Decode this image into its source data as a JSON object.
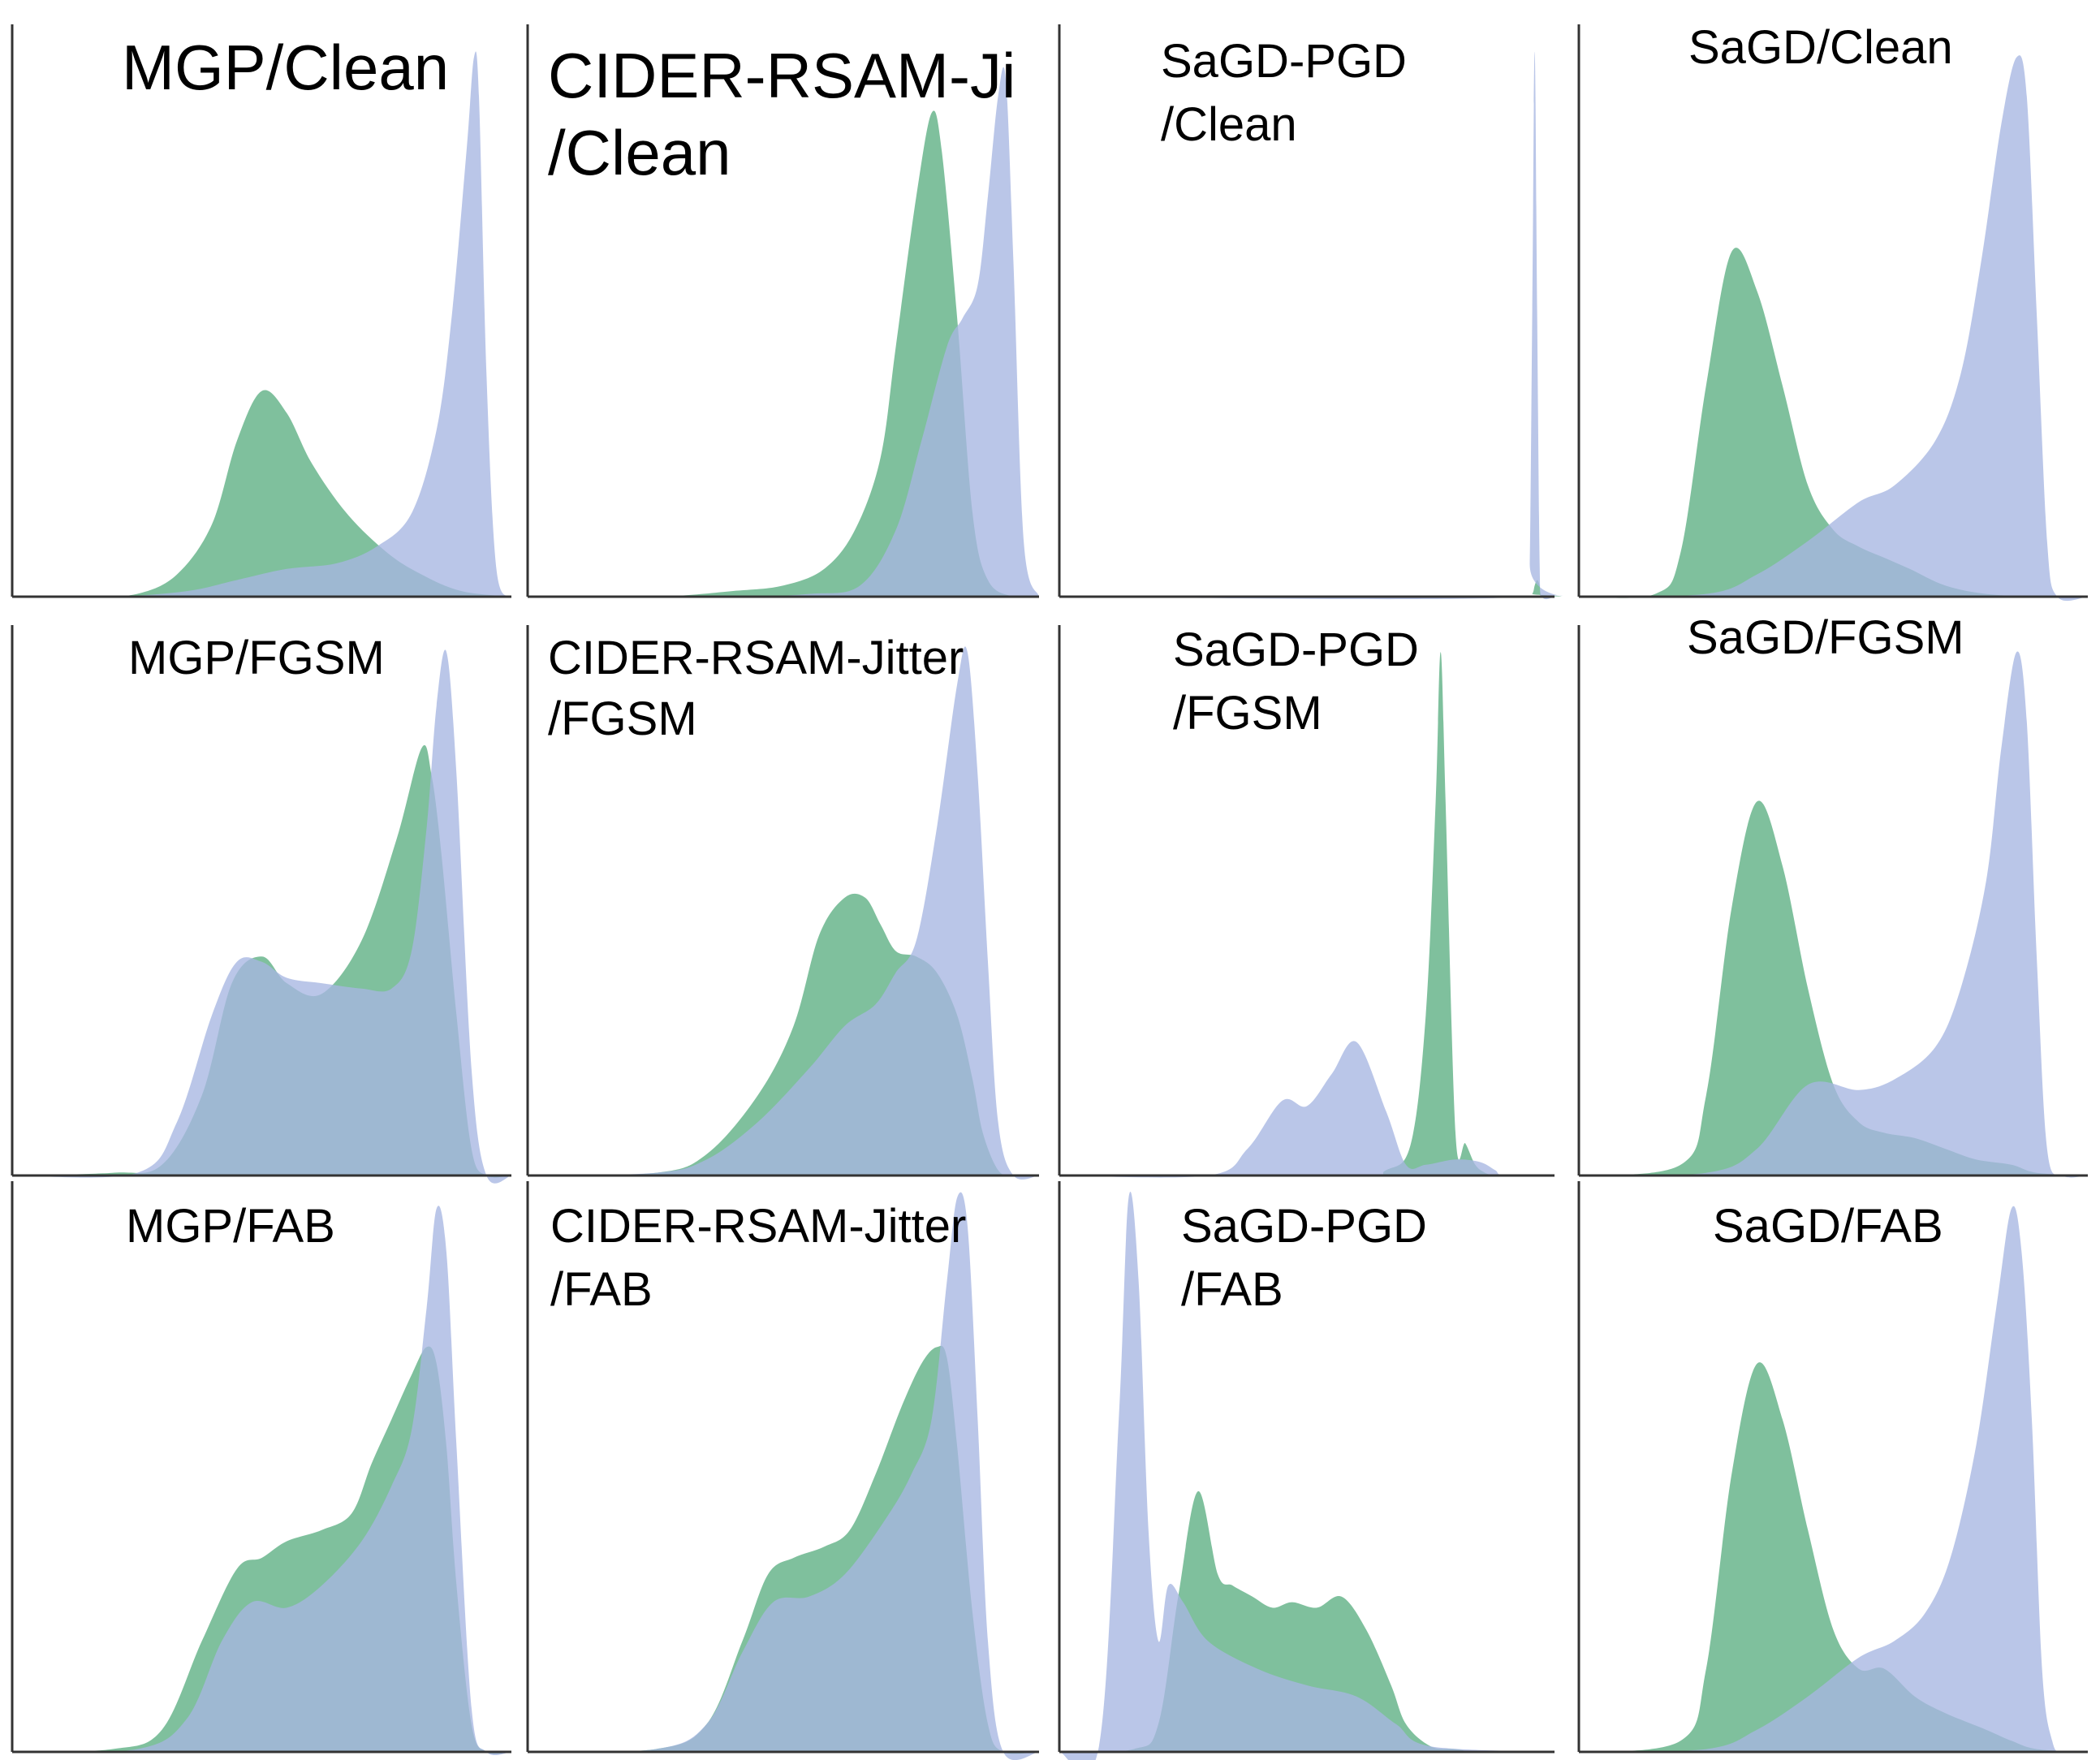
{
  "figure": {
    "series_colors": {
      "green": "#5bae82",
      "blue": "#a7b6e2"
    },
    "fill_opacity": 0.78
  },
  "chart_data": [
    {
      "type": "area",
      "name": "MGP/Clean",
      "title_lines": [
        "MGP/Clean"
      ],
      "xlim": [
        0,
        1
      ],
      "ylim": [
        0,
        1
      ],
      "grid": false,
      "series": [
        {
          "name": "green",
          "x": [
            0.0,
            0.15,
            0.25,
            0.33,
            0.4,
            0.45,
            0.5,
            0.55,
            0.6,
            0.67,
            0.75,
            0.82,
            0.9,
            1.0
          ],
          "values": [
            0.0,
            0.0,
            0.005,
            0.04,
            0.13,
            0.28,
            0.37,
            0.33,
            0.24,
            0.15,
            0.08,
            0.04,
            0.01,
            0.0
          ]
        },
        {
          "name": "blue",
          "x": [
            0.0,
            0.2,
            0.35,
            0.45,
            0.55,
            0.65,
            0.73,
            0.8,
            0.85,
            0.88,
            0.91,
            0.925,
            0.935,
            0.95,
            0.97,
            1.0
          ],
          "values": [
            0.0,
            0.0,
            0.01,
            0.03,
            0.05,
            0.06,
            0.09,
            0.15,
            0.3,
            0.5,
            0.8,
            0.97,
            0.9,
            0.4,
            0.05,
            0.0
          ]
        }
      ]
    },
    {
      "type": "area",
      "name": "CIDER-RSAM-Ji/Clean",
      "title_lines": [
        "CIDER-RSAM-Ji",
        "/Clean"
      ],
      "xlim": [
        0,
        1
      ],
      "ylim": [
        0,
        1
      ],
      "grid": false,
      "series": [
        {
          "name": "green",
          "x": [
            0.0,
            0.25,
            0.4,
            0.5,
            0.58,
            0.64,
            0.69,
            0.72,
            0.76,
            0.79,
            0.81,
            0.84,
            0.87,
            0.9,
            0.95,
            1.0
          ],
          "values": [
            0.0,
            0.0,
            0.01,
            0.02,
            0.05,
            0.12,
            0.25,
            0.45,
            0.72,
            0.87,
            0.8,
            0.5,
            0.15,
            0.03,
            0.0,
            0.0
          ]
        },
        {
          "name": "blue",
          "x": [
            0.0,
            0.4,
            0.55,
            0.65,
            0.72,
            0.77,
            0.82,
            0.85,
            0.88,
            0.9,
            0.92,
            0.935,
            0.95,
            0.97,
            1.0
          ],
          "values": [
            0.0,
            0.0,
            0.005,
            0.02,
            0.12,
            0.28,
            0.45,
            0.5,
            0.56,
            0.72,
            0.9,
            0.93,
            0.6,
            0.1,
            0.0
          ]
        }
      ]
    },
    {
      "type": "area",
      "name": "SaGD-PGD/Clean",
      "title_lines": [
        "SaGD-PGD",
        "/Clean"
      ],
      "xlim": [
        0,
        1
      ],
      "ylim": [
        0,
        1
      ],
      "grid": false,
      "series": [
        {
          "name": "green",
          "x": [
            0.0,
            0.94,
            0.955,
            0.96,
            0.965,
            0.97,
            0.975,
            1.0
          ],
          "values": [
            0.0,
            0.0,
            0.005,
            0.02,
            0.03,
            0.02,
            0.0,
            0.0
          ]
        },
        {
          "name": "blue",
          "x": [
            0.0,
            0.945,
            0.95,
            0.955,
            0.96,
            0.965,
            0.97,
            0.975,
            1.0
          ],
          "values": [
            0.0,
            0.0,
            0.06,
            0.5,
            0.98,
            0.5,
            0.06,
            0.0,
            0.0
          ]
        }
      ]
    },
    {
      "type": "area",
      "name": "SaGD/Clean",
      "title_lines": [
        "SaGD/Clean"
      ],
      "xlim": [
        0,
        1
      ],
      "ylim": [
        0,
        1
      ],
      "grid": false,
      "series": [
        {
          "name": "green",
          "x": [
            0.0,
            0.15,
            0.2,
            0.25,
            0.3,
            0.35,
            0.4,
            0.45,
            0.5,
            0.55,
            0.6,
            0.65,
            0.72,
            0.8,
            0.9,
            1.0
          ],
          "values": [
            0.0,
            0.005,
            0.08,
            0.38,
            0.62,
            0.55,
            0.38,
            0.2,
            0.12,
            0.09,
            0.07,
            0.05,
            0.02,
            0.005,
            0.0,
            0.0
          ]
        },
        {
          "name": "blue",
          "x": [
            0.0,
            0.25,
            0.35,
            0.45,
            0.55,
            0.62,
            0.7,
            0.75,
            0.79,
            0.83,
            0.86,
            0.88,
            0.9,
            0.92,
            0.94,
            1.0
          ],
          "values": [
            0.0,
            0.005,
            0.04,
            0.1,
            0.17,
            0.2,
            0.28,
            0.4,
            0.6,
            0.85,
            0.97,
            0.9,
            0.5,
            0.1,
            0.0,
            0.0
          ]
        }
      ]
    },
    {
      "type": "area",
      "name": "MGP/FGSM",
      "title_lines": [
        "MGP/FGSM"
      ],
      "xlim": [
        0,
        1
      ],
      "ylim": [
        0,
        1
      ],
      "grid": false,
      "series": [
        {
          "name": "green",
          "x": [
            0.0,
            0.2,
            0.3,
            0.38,
            0.44,
            0.5,
            0.55,
            0.62,
            0.7,
            0.77,
            0.82,
            0.84,
            0.86,
            0.89,
            0.92,
            0.95,
            1.0
          ],
          "values": [
            0.0,
            0.005,
            0.02,
            0.15,
            0.36,
            0.41,
            0.36,
            0.34,
            0.44,
            0.63,
            0.8,
            0.75,
            0.6,
            0.3,
            0.05,
            0.0,
            0.0
          ]
        },
        {
          "name": "blue",
          "x": [
            0.0,
            0.25,
            0.33,
            0.4,
            0.45,
            0.5,
            0.55,
            0.62,
            0.7,
            0.76,
            0.8,
            0.83,
            0.85,
            0.87,
            0.89,
            0.92,
            0.95,
            1.0
          ],
          "values": [
            0.0,
            0.005,
            0.1,
            0.3,
            0.4,
            0.4,
            0.37,
            0.36,
            0.35,
            0.35,
            0.42,
            0.65,
            0.88,
            0.98,
            0.75,
            0.2,
            0.0,
            0.0
          ]
        }
      ]
    },
    {
      "type": "area",
      "name": "CIDER-RSAM-Jitter/FGSM",
      "title_lines": [
        "CIDER-RSAM-Jitter",
        "/FGSM"
      ],
      "xlim": [
        0,
        1
      ],
      "ylim": [
        0,
        1
      ],
      "grid": false,
      "series": [
        {
          "name": "green",
          "x": [
            0.0,
            0.25,
            0.35,
            0.45,
            0.52,
            0.57,
            0.62,
            0.66,
            0.69,
            0.72,
            0.76,
            0.8,
            0.84,
            0.87,
            0.89,
            0.92,
            0.95,
            1.0
          ],
          "values": [
            0.0,
            0.005,
            0.04,
            0.15,
            0.28,
            0.45,
            0.52,
            0.52,
            0.47,
            0.42,
            0.41,
            0.38,
            0.3,
            0.18,
            0.08,
            0.01,
            0.0,
            0.0
          ]
        },
        {
          "name": "blue",
          "x": [
            0.0,
            0.25,
            0.35,
            0.45,
            0.55,
            0.62,
            0.68,
            0.72,
            0.76,
            0.8,
            0.84,
            0.86,
            0.88,
            0.9,
            0.92,
            0.95,
            1.0
          ],
          "values": [
            0.0,
            0.005,
            0.03,
            0.1,
            0.2,
            0.28,
            0.32,
            0.38,
            0.44,
            0.65,
            0.92,
            0.98,
            0.75,
            0.4,
            0.1,
            0.0,
            0.0
          ]
        }
      ]
    },
    {
      "type": "area",
      "name": "SaGD-PGD/FGSM",
      "title_lines": [
        "SaGD-PGD",
        "/FGSM"
      ],
      "xlim": [
        0,
        1
      ],
      "ylim": [
        0,
        1
      ],
      "grid": false,
      "series": [
        {
          "name": "green",
          "x": [
            0.0,
            0.58,
            0.66,
            0.71,
            0.74,
            0.76,
            0.77,
            0.78,
            0.8,
            0.82,
            0.84,
            0.86,
            0.88,
            0.9,
            1.0
          ],
          "values": [
            0.0,
            0.0,
            0.01,
            0.06,
            0.3,
            0.7,
            0.98,
            0.7,
            0.08,
            0.06,
            0.02,
            0.005,
            0.0,
            0.0,
            0.0
          ]
        },
        {
          "name": "blue",
          "x": [
            0.0,
            0.3,
            0.38,
            0.45,
            0.5,
            0.55,
            0.6,
            0.66,
            0.7,
            0.74,
            0.8,
            0.85,
            0.88,
            0.9,
            1.0
          ],
          "values": [
            0.0,
            0.0,
            0.05,
            0.14,
            0.13,
            0.19,
            0.25,
            0.12,
            0.02,
            0.02,
            0.03,
            0.025,
            0.01,
            0.0,
            0.0
          ]
        }
      ]
    },
    {
      "type": "area",
      "name": "SaGD/FGSM",
      "title_lines": [
        "SaGD/FGSM"
      ],
      "xlim": [
        0,
        1
      ],
      "ylim": [
        0,
        1
      ],
      "grid": false,
      "series": [
        {
          "name": "green",
          "x": [
            0.0,
            0.2,
            0.25,
            0.3,
            0.35,
            0.4,
            0.45,
            0.5,
            0.55,
            0.6,
            0.66,
            0.72,
            0.78,
            0.85,
            0.9,
            1.0
          ],
          "values": [
            0.0,
            0.02,
            0.15,
            0.5,
            0.7,
            0.58,
            0.35,
            0.17,
            0.1,
            0.08,
            0.07,
            0.05,
            0.03,
            0.02,
            0.005,
            0.0
          ]
        },
        {
          "name": "blue",
          "x": [
            0.0,
            0.25,
            0.35,
            0.45,
            0.55,
            0.62,
            0.7,
            0.75,
            0.8,
            0.83,
            0.86,
            0.88,
            0.9,
            0.92,
            0.95,
            1.0
          ],
          "values": [
            0.0,
            0.005,
            0.05,
            0.17,
            0.16,
            0.18,
            0.24,
            0.35,
            0.55,
            0.8,
            0.98,
            0.85,
            0.4,
            0.05,
            0.0,
            0.0
          ]
        }
      ]
    },
    {
      "type": "area",
      "name": "MGP/FAB",
      "title_lines": [
        "MGP/FAB"
      ],
      "xlim": [
        0,
        1
      ],
      "ylim": [
        0,
        1
      ],
      "grid": false,
      "series": [
        {
          "name": "green",
          "x": [
            0.0,
            0.2,
            0.3,
            0.38,
            0.45,
            0.5,
            0.55,
            0.62,
            0.68,
            0.72,
            0.76,
            0.8,
            0.83,
            0.85,
            0.87,
            0.89,
            0.92,
            0.95,
            1.0
          ],
          "values": [
            0.0,
            0.005,
            0.04,
            0.2,
            0.33,
            0.35,
            0.38,
            0.4,
            0.43,
            0.52,
            0.6,
            0.68,
            0.73,
            0.7,
            0.55,
            0.3,
            0.05,
            0.0,
            0.0
          ]
        },
        {
          "name": "blue",
          "x": [
            0.0,
            0.25,
            0.35,
            0.42,
            0.48,
            0.55,
            0.62,
            0.7,
            0.76,
            0.8,
            0.83,
            0.85,
            0.87,
            0.89,
            0.92,
            0.95,
            1.0
          ],
          "values": [
            0.0,
            0.005,
            0.06,
            0.2,
            0.27,
            0.26,
            0.3,
            0.38,
            0.48,
            0.58,
            0.8,
            0.98,
            0.9,
            0.55,
            0.08,
            0.0,
            0.0
          ]
        }
      ]
    },
    {
      "type": "area",
      "name": "CIDER-RSAM-Jitter/FAB",
      "title_lines": [
        "CIDER-RSAM-Jitter",
        "/FAB"
      ],
      "xlim": [
        0,
        1
      ],
      "ylim": [
        0,
        1
      ],
      "grid": false,
      "series": [
        {
          "name": "green",
          "x": [
            0.0,
            0.25,
            0.35,
            0.42,
            0.47,
            0.52,
            0.58,
            0.63,
            0.68,
            0.73,
            0.77,
            0.8,
            0.82,
            0.84,
            0.87,
            0.9,
            0.93,
            1.0
          ],
          "values": [
            0.0,
            0.005,
            0.05,
            0.2,
            0.32,
            0.35,
            0.37,
            0.4,
            0.5,
            0.62,
            0.7,
            0.73,
            0.71,
            0.55,
            0.25,
            0.05,
            0.0,
            0.0
          ]
        },
        {
          "name": "blue",
          "x": [
            0.0,
            0.25,
            0.35,
            0.42,
            0.48,
            0.55,
            0.62,
            0.7,
            0.75,
            0.79,
            0.82,
            0.84,
            0.86,
            0.88,
            0.9,
            0.93,
            1.0
          ],
          "values": [
            0.0,
            0.005,
            0.05,
            0.18,
            0.27,
            0.28,
            0.32,
            0.42,
            0.5,
            0.6,
            0.85,
            1.0,
            0.95,
            0.6,
            0.2,
            0.0,
            0.0
          ]
        }
      ]
    },
    {
      "type": "area",
      "name": "SaGD-PGD/FAB",
      "title_lines": [
        "SaGD-PGD",
        "/FAB"
      ],
      "xlim": [
        0,
        1
      ],
      "ylim": [
        0,
        1
      ],
      "grid": false,
      "series": [
        {
          "name": "green",
          "x": [
            0.0,
            0.15,
            0.2,
            0.24,
            0.28,
            0.32,
            0.35,
            0.39,
            0.43,
            0.47,
            0.52,
            0.57,
            0.62,
            0.67,
            0.7,
            0.75,
            0.8,
            0.85,
            1.0
          ],
          "values": [
            0.0,
            0.005,
            0.05,
            0.28,
            0.47,
            0.32,
            0.3,
            0.28,
            0.26,
            0.27,
            0.26,
            0.28,
            0.22,
            0.12,
            0.05,
            0.01,
            0.005,
            0.0,
            0.0
          ]
        },
        {
          "name": "blue",
          "x": [
            0.0,
            0.08,
            0.12,
            0.14,
            0.16,
            0.18,
            0.2,
            0.22,
            0.25,
            0.3,
            0.4,
            0.5,
            0.6,
            0.68,
            0.75,
            1.0
          ],
          "values": [
            0.0,
            0.01,
            0.6,
            1.0,
            0.85,
            0.4,
            0.2,
            0.3,
            0.27,
            0.2,
            0.15,
            0.12,
            0.1,
            0.05,
            0.01,
            0.0
          ]
        }
      ]
    },
    {
      "type": "area",
      "name": "SaGD/FAB",
      "title_lines": [
        "SaGD/FAB"
      ],
      "xlim": [
        0,
        1
      ],
      "ylim": [
        0,
        1
      ],
      "grid": false,
      "series": [
        {
          "name": "green",
          "x": [
            0.0,
            0.2,
            0.25,
            0.3,
            0.35,
            0.4,
            0.45,
            0.5,
            0.55,
            0.6,
            0.66,
            0.72,
            0.8,
            0.85,
            0.9,
            1.0
          ],
          "values": [
            0.0,
            0.02,
            0.15,
            0.5,
            0.7,
            0.6,
            0.4,
            0.22,
            0.15,
            0.15,
            0.1,
            0.07,
            0.04,
            0.02,
            0.005,
            0.0
          ]
        },
        {
          "name": "blue",
          "x": [
            0.0,
            0.25,
            0.35,
            0.45,
            0.55,
            0.62,
            0.68,
            0.73,
            0.78,
            0.82,
            0.85,
            0.87,
            0.89,
            0.91,
            0.93,
            0.95,
            1.0
          ],
          "values": [
            0.0,
            0.005,
            0.04,
            0.1,
            0.17,
            0.2,
            0.25,
            0.35,
            0.55,
            0.8,
            0.98,
            0.9,
            0.6,
            0.15,
            0.02,
            0.0,
            0.0
          ]
        }
      ]
    }
  ]
}
